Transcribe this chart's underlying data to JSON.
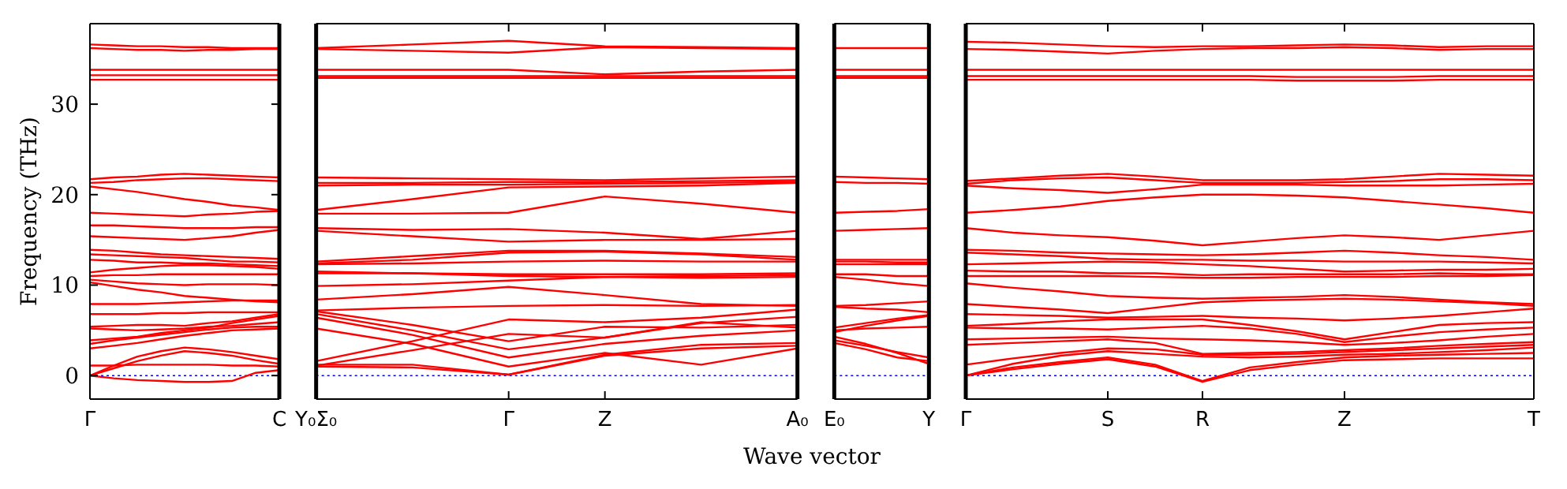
{
  "chart_data": [
    {
      "type": "line",
      "ylabel": "Frequency (THz)",
      "color": "#ff0000",
      "ylim": [
        -2.6,
        38.9
      ],
      "yticks": [
        0,
        10,
        20,
        30
      ],
      "categories": [
        "Γ",
        null,
        null,
        null,
        null,
        null,
        null,
        null,
        "C"
      ],
      "ref_lines": [
        {
          "axis": "y",
          "value": 0,
          "color": "#0000ff",
          "line_style": "dotted"
        }
      ],
      "series": [
        {
          "values": [
            36.6,
            36.5,
            36.4,
            36.4,
            36.3,
            36.3,
            36.2,
            36.2,
            36.2
          ]
        },
        {
          "values": [
            36.2,
            36.1,
            36.0,
            36.0,
            35.9,
            36.0,
            36.0,
            36.1,
            36.1
          ]
        },
        {
          "values": [
            33.8,
            33.8,
            33.8,
            33.8,
            33.8,
            33.8,
            33.8,
            33.8,
            33.8
          ]
        },
        {
          "values": [
            33.2,
            33.2,
            33.2,
            33.2,
            33.2,
            33.2,
            33.2,
            33.2,
            33.2
          ]
        },
        {
          "values": [
            32.7,
            32.7,
            32.7,
            32.7,
            32.7,
            32.7,
            32.7,
            32.7,
            32.7
          ]
        },
        {
          "values": [
            21.7,
            21.9,
            22.0,
            22.2,
            22.3,
            22.2,
            22.1,
            22.0,
            21.9
          ]
        },
        {
          "values": [
            21.3,
            21.4,
            21.6,
            21.7,
            21.8,
            21.8,
            21.7,
            21.6,
            21.5
          ]
        },
        {
          "values": [
            20.9,
            20.6,
            20.3,
            19.9,
            19.5,
            19.2,
            18.8,
            18.6,
            18.3
          ]
        },
        {
          "values": [
            18.0,
            17.9,
            17.8,
            17.7,
            17.6,
            17.8,
            17.9,
            18.1,
            18.2
          ]
        },
        {
          "values": [
            16.6,
            16.6,
            16.5,
            16.4,
            16.3,
            16.3,
            16.3,
            16.4,
            16.4
          ]
        },
        {
          "values": [
            15.4,
            15.3,
            15.2,
            15.1,
            15.0,
            15.2,
            15.4,
            15.8,
            16.1
          ]
        },
        {
          "values": [
            13.9,
            13.8,
            13.6,
            13.4,
            13.3,
            13.2,
            13.1,
            13.0,
            12.9
          ]
        },
        {
          "values": [
            13.4,
            13.3,
            13.2,
            13.1,
            13.0,
            12.8,
            12.6,
            12.6,
            12.5
          ]
        },
        {
          "values": [
            12.8,
            12.7,
            12.5,
            12.5,
            12.4,
            12.4,
            12.3,
            12.2,
            12.1
          ]
        },
        {
          "values": [
            11.4,
            11.7,
            11.9,
            12.1,
            12.2,
            12.2,
            12.1,
            12.0,
            11.8
          ]
        },
        {
          "values": [
            11.0,
            11.1,
            11.1,
            11.2,
            11.2,
            11.2,
            11.2,
            11.2,
            11.2
          ]
        },
        {
          "values": [
            10.6,
            10.4,
            10.2,
            10.1,
            10.0,
            10.1,
            10.1,
            10.1,
            10.0
          ]
        },
        {
          "values": [
            10.3,
            9.9,
            9.5,
            9.2,
            8.8,
            8.6,
            8.4,
            8.2,
            8.1
          ]
        },
        {
          "values": [
            7.9,
            7.9,
            7.9,
            8.0,
            8.1,
            8.2,
            8.3,
            8.3,
            8.3
          ]
        },
        {
          "values": [
            6.8,
            6.8,
            6.8,
            6.9,
            6.9,
            7.0,
            7.0,
            7.0,
            7.0
          ]
        },
        {
          "values": [
            5.4,
            5.5,
            5.6,
            5.6,
            5.5,
            5.8,
            6.0,
            6.4,
            6.8
          ]
        },
        {
          "values": [
            5.2,
            5.1,
            5.0,
            5.1,
            5.2,
            5.4,
            5.5,
            5.7,
            5.9
          ]
        },
        {
          "values": [
            3.9,
            4.1,
            4.3,
            4.7,
            5.0,
            5.3,
            5.8,
            6.2,
            6.6
          ]
        },
        {
          "values": [
            3.5,
            3.9,
            4.2,
            4.5,
            4.8,
            5.1,
            5.3,
            5.4,
            5.4
          ]
        },
        {
          "values": [
            3.0,
            3.3,
            3.6,
            4.0,
            4.4,
            4.7,
            5.0,
            5.1,
            5.2
          ]
        },
        {
          "values": [
            0,
            1.1,
            2.1,
            2.7,
            3.1,
            2.9,
            2.6,
            2.2,
            1.8
          ]
        },
        {
          "values": [
            0,
            0.8,
            1.6,
            2.2,
            2.7,
            2.5,
            2.2,
            1.7,
            1.3
          ]
        },
        {
          "values": [
            1.1,
            1.1,
            1.2,
            1.2,
            1.2,
            1.2,
            1.1,
            1.1,
            1.0
          ]
        },
        {
          "values": [
            0,
            -0.3,
            -0.5,
            -0.6,
            -0.7,
            -0.7,
            -0.6,
            0.3,
            0.6
          ]
        }
      ]
    },
    {
      "type": "line",
      "xlabel": "Wave vector",
      "color": "#ff0000",
      "ylim": [
        -2.6,
        38.9
      ],
      "tick_labels": "x",
      "categories": [
        "Y₀Σ₀",
        null,
        "Γ",
        "Z",
        null,
        "A₀"
      ],
      "ref_lines": [
        {
          "axis": "y",
          "value": 0,
          "color": "#0000ff",
          "line_style": "dotted"
        }
      ],
      "series": [
        {
          "values": [
            36.2,
            36.6,
            37.0,
            36.4,
            36.3,
            36.2
          ]
        },
        {
          "values": [
            36.1,
            35.9,
            35.7,
            36.3,
            36.2,
            36.1
          ]
        },
        {
          "values": [
            33.8,
            33.8,
            33.8,
            33.3,
            33.6,
            33.8
          ]
        },
        {
          "values": [
            33.1,
            33.1,
            33.1,
            33.1,
            33.1,
            33.1
          ]
        },
        {
          "values": [
            32.9,
            32.9,
            32.9,
            32.9,
            32.9,
            32.9
          ]
        },
        {
          "values": [
            21.9,
            21.8,
            21.7,
            21.6,
            21.8,
            22.0
          ]
        },
        {
          "values": [
            21.3,
            21.3,
            21.4,
            21.4,
            21.5,
            21.6
          ]
        },
        {
          "values": [
            21.0,
            21.1,
            21.1,
            21.2,
            21.3,
            21.4
          ]
        },
        {
          "values": [
            18.3,
            19.5,
            20.8,
            20.9,
            21.0,
            21.3
          ]
        },
        {
          "values": [
            17.9,
            17.9,
            18.0,
            19.8,
            19.0,
            18.0
          ]
        },
        {
          "values": [
            16.3,
            16.1,
            16.2,
            15.8,
            15.1,
            16.0
          ]
        },
        {
          "values": [
            16.0,
            15.4,
            14.8,
            15.0,
            15.0,
            15.1
          ]
        },
        {
          "values": [
            12.6,
            13.2,
            13.8,
            13.8,
            13.5,
            13.1
          ]
        },
        {
          "values": [
            12.4,
            12.8,
            13.6,
            13.7,
            13.4,
            12.8
          ]
        },
        {
          "values": [
            12.3,
            12.4,
            12.6,
            12.7,
            12.6,
            12.6
          ]
        },
        {
          "values": [
            11.3,
            11.3,
            11.2,
            11.2,
            11.2,
            11.3
          ]
        },
        {
          "values": [
            11.5,
            11.3,
            11.0,
            10.9,
            11.0,
            11.1
          ]
        },
        {
          "values": [
            9.9,
            10.1,
            10.5,
            10.9,
            10.8,
            10.9
          ]
        },
        {
          "values": [
            8.4,
            9.0,
            9.8,
            8.9,
            7.9,
            7.7
          ]
        },
        {
          "values": [
            7.2,
            7.5,
            7.7,
            7.8,
            7.7,
            7.8
          ]
        },
        {
          "values": [
            7.1,
            5.6,
            3.8,
            5.4,
            5.3,
            5.6
          ]
        },
        {
          "values": [
            6.8,
            5.0,
            2.9,
            4.2,
            5.9,
            5.3
          ]
        },
        {
          "values": [
            6.4,
            4.5,
            2.0,
            3.5,
            4.4,
            5.0
          ]
        },
        {
          "values": [
            5.2,
            3.5,
            1.0,
            2.5,
            1.2,
            3.0
          ]
        },
        {
          "values": [
            1.6,
            3.8,
            6.2,
            5.9,
            6.4,
            7.3
          ]
        },
        {
          "values": [
            1.1,
            2.8,
            4.6,
            4.2,
            5.8,
            6.5
          ]
        },
        {
          "values": [
            1.2,
            1.2,
            0.1,
            2.3,
            3.4,
            3.6
          ]
        },
        {
          "values": [
            1.0,
            0.9,
            0.1,
            2.2,
            3.0,
            3.3
          ]
        }
      ]
    },
    {
      "type": "line",
      "color": "#ff0000",
      "ylim": [
        -2.6,
        38.9
      ],
      "tick_labels": "x",
      "categories": [
        "E₀",
        null,
        null,
        "Y"
      ],
      "ref_lines": [
        {
          "axis": "y",
          "value": 0,
          "color": "#0000ff",
          "line_style": "dotted"
        }
      ],
      "series": [
        {
          "values": [
            36.2,
            36.2,
            36.2,
            36.2
          ]
        },
        {
          "values": [
            33.8,
            33.8,
            33.8,
            33.8
          ]
        },
        {
          "values": [
            33.1,
            33.1,
            33.1,
            33.1
          ]
        },
        {
          "values": [
            32.9,
            32.9,
            32.9,
            32.9
          ]
        },
        {
          "values": [
            22.0,
            21.9,
            21.8,
            21.7
          ]
        },
        {
          "values": [
            21.4,
            21.3,
            21.3,
            21.2
          ]
        },
        {
          "values": [
            18.0,
            18.1,
            18.2,
            18.4
          ]
        },
        {
          "values": [
            16.0,
            16.1,
            16.2,
            16.3
          ]
        },
        {
          "values": [
            12.8,
            12.8,
            12.8,
            12.8
          ]
        },
        {
          "values": [
            12.6,
            12.6,
            12.5,
            12.5
          ]
        },
        {
          "values": [
            12.3,
            12.3,
            12.3,
            12.3
          ]
        },
        {
          "values": [
            11.2,
            11.2,
            11.0,
            11.0
          ]
        },
        {
          "values": [
            10.9,
            10.6,
            10.2,
            9.9
          ]
        },
        {
          "values": [
            7.7,
            7.8,
            8.0,
            8.2
          ]
        },
        {
          "values": [
            7.6,
            7.4,
            7.3,
            7.0
          ]
        },
        {
          "values": [
            5.3,
            5.8,
            6.3,
            6.7
          ]
        },
        {
          "values": [
            4.8,
            5.5,
            6.1,
            6.6
          ]
        },
        {
          "values": [
            5.0,
            5.2,
            5.3,
            5.4
          ]
        },
        {
          "values": [
            4.3,
            3.5,
            2.5,
            1.3
          ]
        },
        {
          "values": [
            3.6,
            2.9,
            2.0,
            1.6
          ]
        },
        {
          "values": [
            3.9,
            3.3,
            2.6,
            2.0
          ]
        }
      ]
    },
    {
      "type": "line",
      "color": "#ff0000",
      "ylim": [
        -2.6,
        38.9
      ],
      "tick_labels": "x",
      "categories": [
        "Γ",
        null,
        null,
        "S",
        null,
        "R",
        null,
        null,
        "Z",
        null,
        null,
        null,
        "T"
      ],
      "ref_lines": [
        {
          "axis": "y",
          "value": 0,
          "color": "#0000ff",
          "line_style": "dotted"
        }
      ],
      "series": [
        {
          "values": [
            36.9,
            36.8,
            36.6,
            36.4,
            36.3,
            36.4,
            36.4,
            36.5,
            36.6,
            36.5,
            36.3,
            36.4,
            36.4
          ]
        },
        {
          "values": [
            36.1,
            36.0,
            35.8,
            35.6,
            35.9,
            36.1,
            36.2,
            36.2,
            36.3,
            36.2,
            36.0,
            36.1,
            36.1
          ]
        },
        {
          "values": [
            33.8,
            33.8,
            33.8,
            33.8,
            33.8,
            33.8,
            33.8,
            33.8,
            33.8,
            33.8,
            33.8,
            33.8,
            33.8
          ]
        },
        {
          "values": [
            33.1,
            33.1,
            33.1,
            33.1,
            33.1,
            33.1,
            33.1,
            33.0,
            33.0,
            33.0,
            33.1,
            33.1,
            33.1
          ]
        },
        {
          "values": [
            32.7,
            32.7,
            32.7,
            32.7,
            32.7,
            32.7,
            32.7,
            32.6,
            32.6,
            32.6,
            32.7,
            32.7,
            32.7
          ]
        },
        {
          "values": [
            21.5,
            21.8,
            22.1,
            22.3,
            22.0,
            21.6,
            21.6,
            21.6,
            21.7,
            22.0,
            22.3,
            22.2,
            22.1
          ]
        },
        {
          "values": [
            21.2,
            21.6,
            21.8,
            21.9,
            21.6,
            21.3,
            21.3,
            21.3,
            21.4,
            21.5,
            21.7,
            21.7,
            21.6
          ]
        },
        {
          "values": [
            21.0,
            20.7,
            20.5,
            20.2,
            20.6,
            21.1,
            21.1,
            21.1,
            21.0,
            21.0,
            21.0,
            21.1,
            21.2
          ]
        },
        {
          "values": [
            18.0,
            18.3,
            18.7,
            19.3,
            19.7,
            20.0,
            20.0,
            19.9,
            19.7,
            19.3,
            18.9,
            18.5,
            18.0
          ]
        },
        {
          "values": [
            16.3,
            15.8,
            15.5,
            15.3,
            14.9,
            14.4,
            14.8,
            15.2,
            15.5,
            15.3,
            15.0,
            15.5,
            16.0
          ]
        },
        {
          "values": [
            13.9,
            13.8,
            13.6,
            13.5,
            13.4,
            13.3,
            13.4,
            13.6,
            13.8,
            13.6,
            13.3,
            13.1,
            12.8
          ]
        },
        {
          "values": [
            13.6,
            13.4,
            13.2,
            12.9,
            12.8,
            12.8,
            12.7,
            12.7,
            12.6,
            12.6,
            12.6,
            12.5,
            12.4
          ]
        },
        {
          "values": [
            12.3,
            12.4,
            12.5,
            12.6,
            12.5,
            12.3,
            12.1,
            11.8,
            11.5,
            11.6,
            11.7,
            11.7,
            11.8
          ]
        },
        {
          "values": [
            11.6,
            11.5,
            11.5,
            11.3,
            11.3,
            11.1,
            11.2,
            11.2,
            11.2,
            11.2,
            11.3,
            11.2,
            11.2
          ]
        },
        {
          "values": [
            11.0,
            11.0,
            11.0,
            11.0,
            10.9,
            10.8,
            10.8,
            10.9,
            10.9,
            10.9,
            11.0,
            11.0,
            11.1
          ]
        },
        {
          "values": [
            10.2,
            9.7,
            9.3,
            8.8,
            8.6,
            8.5,
            8.6,
            8.7,
            8.9,
            8.7,
            8.4,
            8.1,
            7.9
          ]
        },
        {
          "values": [
            7.9,
            7.6,
            7.3,
            6.9,
            7.5,
            8.1,
            8.3,
            8.4,
            8.5,
            8.4,
            8.2,
            8.0,
            7.7
          ]
        },
        {
          "values": [
            6.8,
            6.7,
            6.6,
            6.4,
            6.5,
            6.6,
            6.4,
            6.3,
            6.1,
            6.3,
            6.6,
            7.0,
            7.4
          ]
        },
        {
          "values": [
            5.5,
            5.7,
            6.0,
            6.2,
            6.2,
            6.2,
            5.6,
            4.9,
            4.0,
            4.8,
            5.6,
            5.8,
            5.9
          ]
        },
        {
          "values": [
            5.3,
            5.2,
            5.2,
            5.1,
            5.3,
            5.5,
            5.2,
            4.6,
            3.7,
            4.3,
            4.8,
            5.1,
            5.3
          ]
        },
        {
          "values": [
            4.0,
            4.1,
            4.2,
            4.3,
            4.1,
            4.0,
            3.9,
            3.7,
            3.4,
            3.6,
            3.9,
            4.3,
            4.6
          ]
        },
        {
          "values": [
            3.4,
            3.6,
            3.8,
            4.0,
            3.6,
            2.4,
            2.5,
            2.6,
            2.8,
            3.0,
            3.3,
            3.5,
            3.7
          ]
        },
        {
          "values": [
            1.2,
            1.9,
            2.5,
            3.0,
            2.9,
            2.3,
            2.3,
            2.4,
            2.6,
            2.8,
            3.0,
            3.2,
            3.4
          ]
        },
        {
          "values": [
            0,
            1.3,
            2.2,
            2.7,
            2.4,
            2.1,
            2.0,
            2.1,
            2.3,
            2.4,
            2.6,
            2.8,
            3.1
          ]
        },
        {
          "values": [
            0,
            0.9,
            1.5,
            2.0,
            1.2,
            -0.6,
            0.9,
            1.5,
            2.0,
            2.2,
            2.3,
            2.4,
            2.5
          ]
        },
        {
          "values": [
            0,
            0.7,
            1.3,
            1.8,
            1.0,
            -0.7,
            0.6,
            1.2,
            1.7,
            1.8,
            1.9,
            1.9,
            1.9
          ]
        }
      ]
    }
  ]
}
